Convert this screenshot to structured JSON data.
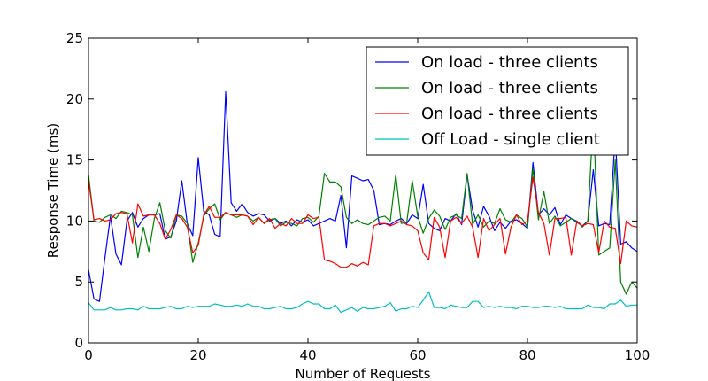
{
  "chart_data": {
    "type": "line",
    "title": "",
    "xlabel": "Number of Requests",
    "ylabel": "Response Time (ms)",
    "xlim": [
      0,
      100
    ],
    "ylim": [
      0,
      25
    ],
    "xticks": [
      0,
      20,
      40,
      60,
      80,
      100
    ],
    "yticks": [
      0,
      5,
      10,
      15,
      20,
      25
    ],
    "grid": false,
    "legend_position": "top-right",
    "series": [
      {
        "name": "On load - three clients",
        "color": "#0000ff",
        "values": [
          6.0,
          3.6,
          3.4,
          7.0,
          10.4,
          7.3,
          6.4,
          10.0,
          10.7,
          9.5,
          10.2,
          10.5,
          10.5,
          10.6,
          8.5,
          8.7,
          10.0,
          13.3,
          9.8,
          8.8,
          15.2,
          10.8,
          10.5,
          8.9,
          8.7,
          20.6,
          11.5,
          10.8,
          11.4,
          10.7,
          10.4,
          10.6,
          10.5,
          10.0,
          10.2,
          9.8,
          10.0,
          9.6,
          10.1,
          9.9,
          10.1,
          9.6,
          9.8,
          10.0,
          10.2,
          10.0,
          12.1,
          7.8,
          13.7,
          13.5,
          13.3,
          13.4,
          12.5,
          9.7,
          9.8,
          9.7,
          10.0,
          10.2,
          9.8,
          10.5,
          10.2,
          13.0,
          9.8,
          9.4,
          9.2,
          10.2,
          10.0,
          10.6,
          9.7,
          13.8,
          10.9,
          9.5,
          11.2,
          10.4,
          9.2,
          9.9,
          9.4,
          10.0,
          10.1,
          9.8,
          9.4,
          14.8,
          10.5,
          11.0,
          10.5,
          11.1,
          9.7,
          10.5,
          10.2,
          9.9,
          9.6,
          10.0,
          14.2,
          9.6,
          9.8,
          9.7,
          17.0,
          8.1,
          8.3,
          7.8,
          7.5
        ]
      },
      {
        "name": "On load - three clients",
        "color": "#008000",
        "values": [
          13.8,
          10.0,
          9.9,
          10.3,
          10.5,
          10.2,
          10.8,
          10.7,
          10.5,
          7.0,
          9.5,
          7.5,
          10.2,
          11.5,
          9.2,
          8.6,
          10.5,
          10.4,
          9.8,
          6.6,
          8.2,
          10.4,
          11.0,
          11.4,
          10.1,
          10.7,
          10.5,
          10.3,
          10.5,
          10.4,
          10.0,
          10.3,
          9.8,
          10.1,
          10.2,
          9.6,
          9.9,
          9.8,
          9.6,
          10.2,
          10.3,
          9.9,
          10.4,
          13.9,
          13.2,
          13.2,
          12.8,
          10.3,
          9.8,
          10.1,
          9.8,
          9.7,
          10.0,
          10.3,
          10.4,
          10.0,
          13.8,
          9.8,
          9.9,
          13.3,
          10.4,
          9.0,
          10.2,
          10.9,
          10.4,
          9.3,
          10.3,
          10.5,
          10.2,
          13.9,
          9.7,
          10.5,
          9.5,
          10.0,
          9.8,
          11.0,
          10.1,
          9.9,
          10.5,
          10.2,
          9.5,
          14.3,
          10.1,
          12.4,
          9.8,
          10.4,
          9.6,
          9.9,
          10.2,
          10.0,
          9.5,
          10.0,
          18.5,
          7.2,
          7.5,
          7.8,
          15.0,
          5.0,
          4.0,
          5.0,
          4.5
        ]
      },
      {
        "name": "On load - three clients",
        "color": "#ff0000",
        "values": [
          13.3,
          10.1,
          10.2,
          10.0,
          10.1,
          10.6,
          10.7,
          10.6,
          8.2,
          11.4,
          10.4,
          10.5,
          10.5,
          9.8,
          8.5,
          9.3,
          10.5,
          10.2,
          9.5,
          7.4,
          8.0,
          10.5,
          11.2,
          10.3,
          10.3,
          10.7,
          10.5,
          10.5,
          10.5,
          10.4,
          9.7,
          10.3,
          9.8,
          10.2,
          9.4,
          9.8,
          9.6,
          10.2,
          9.8,
          9.8,
          10.5,
          10.2,
          10.3,
          6.8,
          6.7,
          6.5,
          6.2,
          6.2,
          6.5,
          6.3,
          6.6,
          6.4,
          9.6,
          9.8,
          9.8,
          9.6,
          9.8,
          10.0,
          9.7,
          9.6,
          9.2,
          7.4,
          6.8,
          10.3,
          9.5,
          7.0,
          10.0,
          10.3,
          9.8,
          10.4,
          9.5,
          7.0,
          10.2,
          9.2,
          9.7,
          10.2,
          7.3,
          9.5,
          10.5,
          9.7,
          10.0,
          13.6,
          10.7,
          9.8,
          7.2,
          10.2,
          10.2,
          10.3,
          7.2,
          10.0,
          9.6,
          9.8,
          9.7,
          7.4,
          10.0,
          9.5,
          9.4,
          6.5,
          10.0,
          9.6,
          9.5,
          10.6
        ]
      },
      {
        "name": "Off Load - single client",
        "color": "#00bfbf",
        "values": [
          3.3,
          2.7,
          2.7,
          2.7,
          2.9,
          2.7,
          2.7,
          2.8,
          2.8,
          2.7,
          3.0,
          2.8,
          2.8,
          2.8,
          2.9,
          3.0,
          2.8,
          2.8,
          3.0,
          2.9,
          3.0,
          3.0,
          3.0,
          3.2,
          3.1,
          3.0,
          3.0,
          3.1,
          3.0,
          3.2,
          3.0,
          3.0,
          2.8,
          2.8,
          2.9,
          3.0,
          2.8,
          2.8,
          2.9,
          3.2,
          3.4,
          3.2,
          3.2,
          2.8,
          2.8,
          3.1,
          2.5,
          2.7,
          2.9,
          2.6,
          2.9,
          2.8,
          2.8,
          2.9,
          3.0,
          3.3,
          2.6,
          2.8,
          2.8,
          3.0,
          2.9,
          3.5,
          4.2,
          2.9,
          2.9,
          2.8,
          3.1,
          3.0,
          2.9,
          2.9,
          3.4,
          3.4,
          2.9,
          3.0,
          2.9,
          3.0,
          2.9,
          2.9,
          2.8,
          3.0,
          3.0,
          2.9,
          2.9,
          3.0,
          3.0,
          2.9,
          3.0,
          2.8,
          2.8,
          2.8,
          2.8,
          3.1,
          2.9,
          2.9,
          2.8,
          3.2,
          3.2,
          3.5,
          3.0,
          3.1,
          3.1
        ]
      }
    ]
  }
}
